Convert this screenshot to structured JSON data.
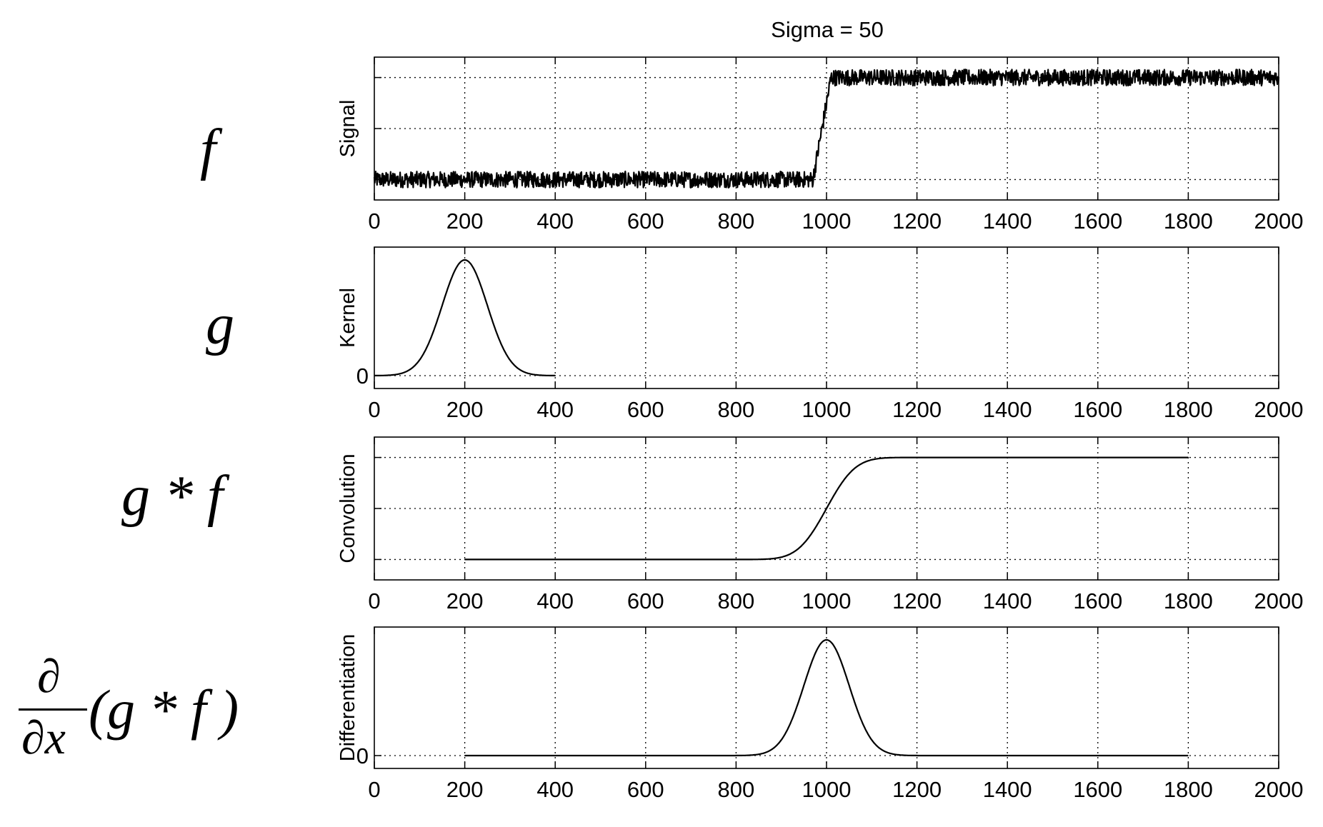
{
  "figure": {
    "title": "Sigma = 50",
    "math_labels": {
      "f": "f",
      "g": "g",
      "conv": "g * f",
      "deriv_num": "∂",
      "deriv_den": "∂x",
      "deriv_expr": "(g * f )"
    }
  },
  "chart_data": [
    {
      "type": "line",
      "name": "signal-plot",
      "title": "Sigma = 50",
      "xlabel": "",
      "ylabel": "Signal",
      "xlim": [
        0,
        2000
      ],
      "ylim": [
        -0.2,
        1.2
      ],
      "x_ticks": [
        0,
        200,
        400,
        600,
        800,
        1000,
        1200,
        1400,
        1600,
        1800,
        2000
      ],
      "y_ticks_labeled": [],
      "y_gridlines": [
        0,
        0.5,
        1
      ],
      "grid": true,
      "series": [
        {
          "points": [
            [
              0,
              0
            ],
            [
              970,
              0
            ],
            [
              1010,
              1
            ],
            [
              2000,
              1
            ]
          ],
          "noise": 0.04
        }
      ]
    },
    {
      "type": "line",
      "name": "kernel-plot",
      "xlabel": "",
      "ylabel": "Kernel",
      "xlim": [
        0,
        2000
      ],
      "ylim": [
        -0.1,
        1.0
      ],
      "x_ticks": [
        0,
        200,
        400,
        600,
        800,
        1000,
        1200,
        1400,
        1600,
        1800,
        2000
      ],
      "y_ticks_labeled": [
        "0"
      ],
      "y_gridlines": [
        0
      ],
      "grid": true,
      "series": [
        {
          "gaussian": {
            "center": 200,
            "sigma": 50,
            "amplitude": 0.9,
            "from": 0,
            "to": 400
          }
        }
      ]
    },
    {
      "type": "line",
      "name": "convolution-plot",
      "xlabel": "",
      "ylabel": "Convolution",
      "xlim": [
        0,
        2000
      ],
      "ylim": [
        -0.2,
        1.2
      ],
      "x_ticks": [
        0,
        200,
        400,
        600,
        800,
        1000,
        1200,
        1400,
        1600,
        1800,
        2000
      ],
      "y_ticks_labeled": [],
      "y_gridlines": [
        0,
        0.5,
        1
      ],
      "grid": true,
      "series": [
        {
          "smoothstep": {
            "center": 1000,
            "sigma": 50,
            "from": 200,
            "to": 1800,
            "low": 0,
            "high": 1
          }
        }
      ]
    },
    {
      "type": "line",
      "name": "differentiation-plot",
      "xlabel": "",
      "ylabel": "Differentiation",
      "xlim": [
        0,
        2000
      ],
      "ylim": [
        -0.1,
        1.0
      ],
      "x_ticks": [
        0,
        200,
        400,
        600,
        800,
        1000,
        1200,
        1400,
        1600,
        1800,
        2000
      ],
      "y_ticks_labeled": [
        "0"
      ],
      "y_gridlines": [
        0
      ],
      "grid": true,
      "series": [
        {
          "gaussian": {
            "center": 1000,
            "sigma": 50,
            "amplitude": 0.9,
            "from": 200,
            "to": 1800
          }
        }
      ]
    }
  ]
}
